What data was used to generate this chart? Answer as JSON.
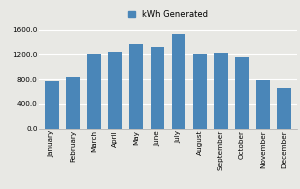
{
  "months": [
    "January",
    "February",
    "March",
    "April",
    "May",
    "June",
    "July",
    "August",
    "September",
    "October",
    "November",
    "December"
  ],
  "values": [
    760,
    840,
    1200,
    1240,
    1370,
    1310,
    1530,
    1210,
    1220,
    1160,
    780,
    660
  ],
  "bar_color": "#4a86b8",
  "legend_label": "kWh Generated",
  "yticks": [
    0.0,
    400.0,
    800.0,
    1200.0,
    1600.0
  ],
  "ylim": [
    0,
    1680
  ],
  "background_color": "#e8e8e4",
  "plot_bg_color": "#e8e8e4",
  "grid_color": "#ffffff",
  "legend_fontsize": 6,
  "tick_fontsize": 5.2,
  "bar_width": 0.65
}
